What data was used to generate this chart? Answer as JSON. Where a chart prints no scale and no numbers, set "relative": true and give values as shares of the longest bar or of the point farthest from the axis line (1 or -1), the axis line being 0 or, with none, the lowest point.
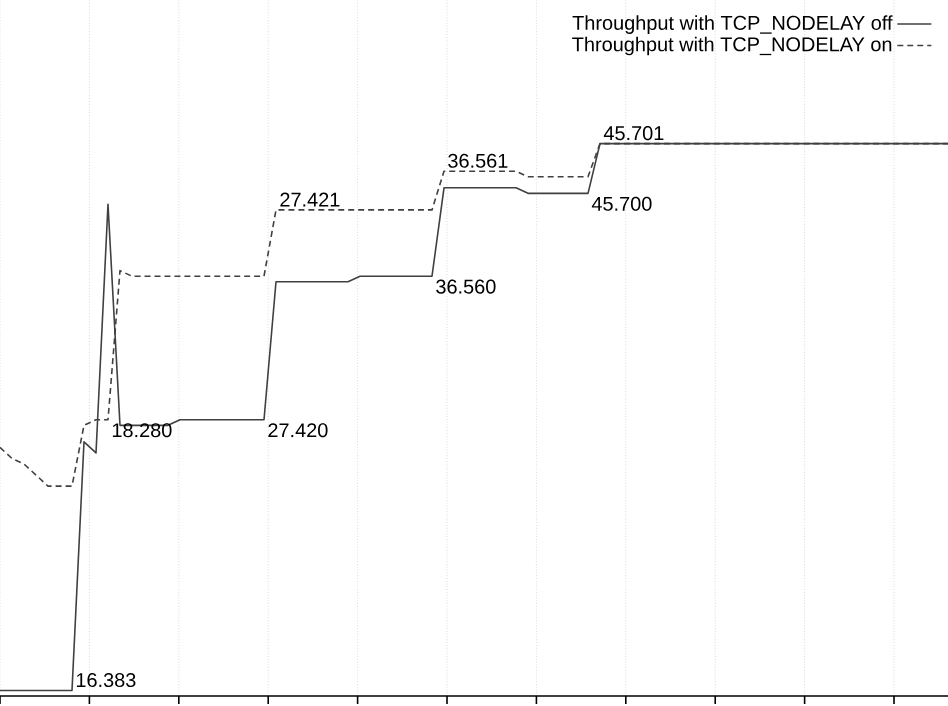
{
  "chart_data": {
    "type": "line",
    "relative": true,
    "grid": true,
    "legend": "top right",
    "categories": [
      null,
      null,
      null,
      null,
      null,
      null,
      null,
      null,
      null,
      null,
      null,
      null,
      null,
      null,
      null,
      null,
      null,
      null,
      null,
      null,
      null,
      null,
      null,
      null,
      null,
      null,
      null,
      null,
      null,
      null,
      null,
      null,
      null,
      null,
      null,
      null,
      null,
      null,
      null,
      null,
      null,
      null,
      null,
      null,
      null,
      null,
      null,
      null,
      null,
      null,
      null,
      null,
      null,
      null,
      null,
      null,
      null,
      null,
      null,
      null,
      null,
      null,
      null,
      null,
      null,
      null,
      null,
      null,
      null,
      null,
      null,
      null,
      null,
      null,
      null,
      null,
      null,
      null,
      null,
      null
    ],
    "series": [
      {
        "name": "Throughput with TCP_NODELAY off",
        "color": "#404040",
        "line_style": "solid",
        "values": [
          0.01,
          0.01,
          0.01,
          0.01,
          0.01,
          0.01,
          0.01,
          0.46,
          0.44,
          0.89,
          0.49,
          0.49,
          0.49,
          0.49,
          0.49,
          0.5,
          0.5,
          0.5,
          0.5,
          0.5,
          0.5,
          0.5,
          0.5,
          0.75,
          0.75,
          0.75,
          0.75,
          0.75,
          0.75,
          0.75,
          0.76,
          0.76,
          0.76,
          0.76,
          0.76,
          0.76,
          0.76,
          0.92,
          0.92,
          0.92,
          0.92,
          0.92,
          0.92,
          0.92,
          0.91,
          0.91,
          0.91,
          0.91,
          0.91,
          0.91,
          1.0,
          1.0,
          1.0,
          1.0,
          1.0,
          1.0,
          1.0,
          1.0,
          1.0,
          1.0,
          1.0,
          1.0,
          1.0,
          1.0,
          1.0,
          1.0,
          1.0,
          1.0,
          1.0,
          1.0,
          1.0,
          1.0,
          1.0,
          1.0,
          1.0,
          1.0,
          1.0,
          1.0,
          1.0,
          1.0
        ]
      },
      {
        "name": "Throughput with TCP_NODELAY on",
        "color": "#404040",
        "line_style": "dashed",
        "values": [
          0.45,
          0.43,
          0.42,
          0.4,
          0.38,
          0.38,
          0.38,
          0.49,
          0.5,
          0.5,
          0.77,
          0.76,
          0.76,
          0.76,
          0.76,
          0.76,
          0.76,
          0.76,
          0.76,
          0.76,
          0.76,
          0.76,
          0.76,
          0.88,
          0.88,
          0.88,
          0.88,
          0.88,
          0.88,
          0.88,
          0.88,
          0.88,
          0.88,
          0.88,
          0.88,
          0.88,
          0.88,
          0.95,
          0.95,
          0.95,
          0.95,
          0.95,
          0.95,
          0.95,
          0.94,
          0.94,
          0.94,
          0.94,
          0.94,
          0.94,
          1.0,
          1.0,
          1.0,
          1.0,
          1.0,
          1.0,
          1.0,
          1.0,
          1.0,
          1.0,
          1.0,
          1.0,
          1.0,
          1.0,
          1.0,
          1.0,
          1.0,
          1.0,
          1.0,
          1.0,
          1.0,
          1.0,
          1.0,
          1.0,
          1.0,
          1.0,
          1.0,
          1.0,
          1.0,
          1.0
        ]
      }
    ],
    "annotations": [
      "16.383",
      "18.280",
      "27.420",
      "27.421",
      "36.560",
      "36.561",
      "45.700",
      "45.701"
    ]
  }
}
